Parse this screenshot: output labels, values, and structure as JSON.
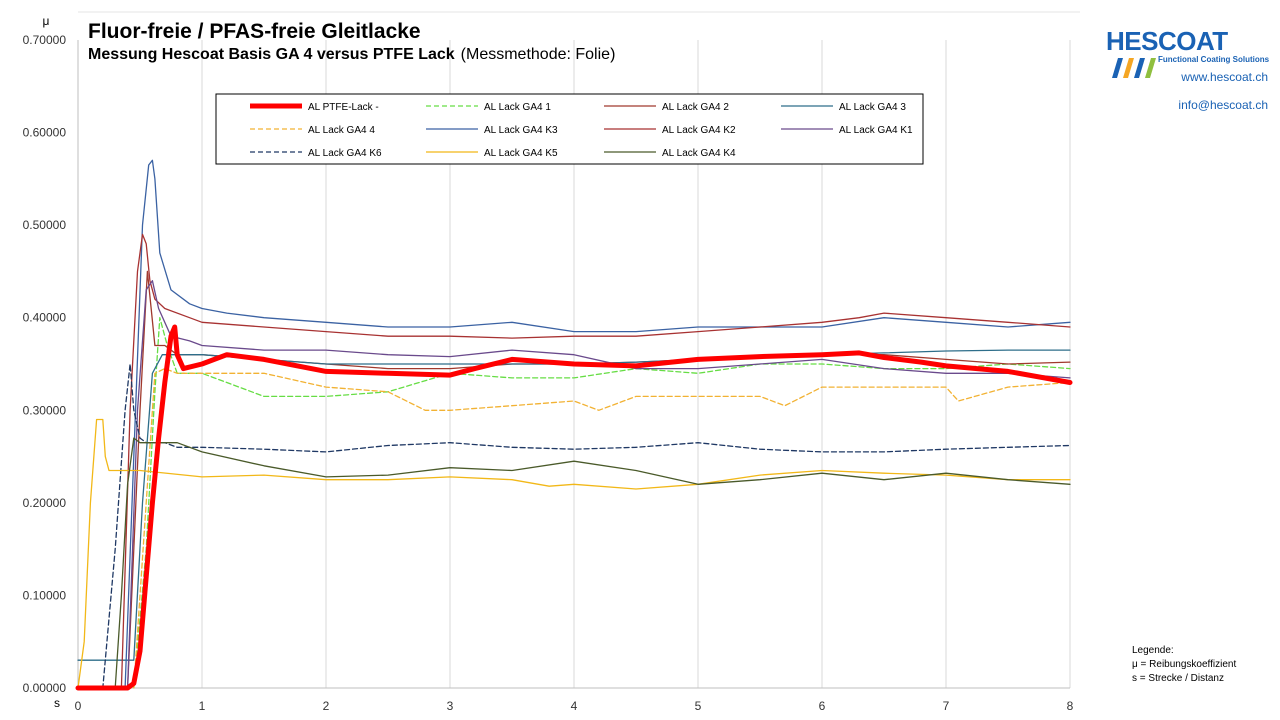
{
  "header": {
    "title": "Fluor-freie / PFAS-freie Gleitlacke",
    "subtitle": "Messung Hescoat Basis GA 4 versus PTFE Lack",
    "method_note": "(Messmethode: Folie)"
  },
  "brand": {
    "logo_text": "HESCOAT",
    "tagline": "Functional Coating Solutions",
    "website": "www.hescoat.ch",
    "email": "info@hescoat.ch",
    "color": "#1a62b4",
    "stripe_colors": [
      "#1a62b4",
      "#f5a623",
      "#1a62b4",
      "#8fbf3f"
    ]
  },
  "legend_note": {
    "heading": "Legende:",
    "line1": "μ = Reibungskoeffizient",
    "line2": "s = Strecke / Distanz"
  },
  "chart_data": {
    "type": "line",
    "title": "Fluor-freie / PFAS-freie Gleitlacke",
    "xlabel": "s",
    "ylabel": "μ",
    "xlim": [
      0,
      8
    ],
    "ylim": [
      0,
      0.7
    ],
    "x_ticks": [
      0,
      1,
      2,
      3,
      4,
      5,
      6,
      7,
      8
    ],
    "y_ticks": [
      "0.00000",
      "0.10000",
      "0.20000",
      "0.30000",
      "0.40000",
      "0.50000",
      "0.60000",
      "0.70000"
    ],
    "y_tick_values": [
      0,
      0.1,
      0.2,
      0.3,
      0.4,
      0.5,
      0.6,
      0.7
    ],
    "grid": "vertical",
    "legend_position": "top",
    "series": [
      {
        "name": "AL PTFE-Lack -",
        "color": "#ff0000",
        "dash": "solid",
        "width": 5,
        "x": [
          0,
          0.4,
          0.45,
          0.5,
          0.55,
          0.6,
          0.65,
          0.7,
          0.75,
          0.78,
          0.8,
          0.85,
          1.0,
          1.2,
          1.5,
          2.0,
          2.5,
          3.0,
          3.2,
          3.5,
          4.0,
          4.5,
          5.0,
          5.5,
          6.0,
          6.3,
          6.5,
          6.8,
          7.0,
          7.5,
          8.0
        ],
        "y": [
          0,
          0,
          0.005,
          0.04,
          0.12,
          0.2,
          0.27,
          0.33,
          0.38,
          0.39,
          0.36,
          0.345,
          0.35,
          0.36,
          0.355,
          0.342,
          0.34,
          0.338,
          0.345,
          0.355,
          0.35,
          0.348,
          0.355,
          0.358,
          0.36,
          0.362,
          0.357,
          0.352,
          0.348,
          0.342,
          0.33
        ]
      },
      {
        "name": "AL Lack GA4 1",
        "color": "#66dd44",
        "dash": "dashed",
        "width": 1.3,
        "x": [
          0,
          0.45,
          0.55,
          0.62,
          0.66,
          0.72,
          0.8,
          1.0,
          1.2,
          1.5,
          2.0,
          2.5,
          3.0,
          3.5,
          4.0,
          4.5,
          5.0,
          5.5,
          6.0,
          6.5,
          7.0,
          7.5,
          8.0
        ],
        "y": [
          0,
          0,
          0.15,
          0.32,
          0.4,
          0.37,
          0.34,
          0.34,
          0.33,
          0.315,
          0.315,
          0.32,
          0.34,
          0.335,
          0.335,
          0.345,
          0.34,
          0.35,
          0.35,
          0.345,
          0.345,
          0.35,
          0.345
        ]
      },
      {
        "name": "AL Lack GA4 2",
        "color": "#a0392d",
        "dash": "solid",
        "width": 1.3,
        "x": [
          0,
          0.4,
          0.5,
          0.56,
          0.62,
          0.7,
          0.8,
          1.0,
          1.5,
          2.0,
          2.5,
          3.0,
          3.5,
          4.0,
          4.5,
          5.0,
          5.5,
          6.0,
          6.5,
          7.0,
          7.5,
          8.0
        ],
        "y": [
          0,
          0,
          0.3,
          0.45,
          0.37,
          0.37,
          0.36,
          0.36,
          0.355,
          0.35,
          0.345,
          0.345,
          0.35,
          0.35,
          0.352,
          0.355,
          0.358,
          0.36,
          0.36,
          0.355,
          0.35,
          0.352
        ]
      },
      {
        "name": "AL Lack GA4 3",
        "color": "#2e6e8a",
        "dash": "solid",
        "width": 1.3,
        "x": [
          0,
          0.45,
          0.52,
          0.6,
          0.68,
          0.8,
          1.0,
          1.5,
          2.0,
          2.5,
          3.0,
          3.5,
          4.0,
          4.5,
          5.0,
          5.5,
          6.0,
          6.5,
          7.0,
          7.5,
          8.0
        ],
        "y": [
          0.03,
          0.03,
          0.2,
          0.34,
          0.36,
          0.36,
          0.36,
          0.355,
          0.35,
          0.35,
          0.35,
          0.35,
          0.35,
          0.352,
          0.355,
          0.358,
          0.36,
          0.362,
          0.364,
          0.365,
          0.365
        ]
      },
      {
        "name": "AL Lack GA4 4",
        "color": "#f2b233",
        "dash": "dashed",
        "width": 1.3,
        "x": [
          0,
          0.45,
          0.55,
          0.62,
          0.7,
          0.8,
          1.0,
          1.5,
          2.0,
          2.5,
          2.8,
          3.0,
          3.5,
          4.0,
          4.2,
          4.5,
          5.0,
          5.5,
          5.7,
          6.0,
          6.5,
          7.0,
          7.1,
          7.5,
          8.0
        ],
        "y": [
          0,
          0,
          0.2,
          0.34,
          0.345,
          0.34,
          0.34,
          0.34,
          0.325,
          0.32,
          0.3,
          0.3,
          0.305,
          0.31,
          0.3,
          0.315,
          0.315,
          0.315,
          0.305,
          0.325,
          0.325,
          0.325,
          0.31,
          0.325,
          0.33
        ]
      },
      {
        "name": "AL Lack GA4 K3",
        "color": "#3b62a3",
        "dash": "solid",
        "width": 1.3,
        "x": [
          0,
          0.38,
          0.45,
          0.52,
          0.57,
          0.6,
          0.62,
          0.66,
          0.75,
          0.9,
          1.0,
          1.2,
          1.5,
          2.0,
          2.5,
          3.0,
          3.5,
          4.0,
          4.5,
          5.0,
          5.5,
          6.0,
          6.5,
          7.0,
          7.5,
          8.0
        ],
        "y": [
          0,
          0,
          0.25,
          0.5,
          0.565,
          0.57,
          0.55,
          0.47,
          0.43,
          0.415,
          0.41,
          0.405,
          0.4,
          0.395,
          0.39,
          0.39,
          0.395,
          0.385,
          0.385,
          0.39,
          0.39,
          0.39,
          0.4,
          0.395,
          0.39,
          0.395
        ]
      },
      {
        "name": "AL Lack GA4 K2",
        "color": "#a83232",
        "dash": "solid",
        "width": 1.3,
        "x": [
          0,
          0.35,
          0.42,
          0.48,
          0.52,
          0.55,
          0.58,
          0.62,
          0.7,
          0.9,
          1.0,
          1.5,
          2.0,
          2.5,
          3.0,
          3.5,
          4.0,
          4.5,
          5.0,
          5.5,
          6.0,
          6.3,
          6.5,
          7.0,
          7.5,
          8.0
        ],
        "y": [
          0,
          0,
          0.3,
          0.45,
          0.49,
          0.48,
          0.44,
          0.42,
          0.41,
          0.4,
          0.395,
          0.39,
          0.385,
          0.38,
          0.38,
          0.378,
          0.38,
          0.38,
          0.385,
          0.39,
          0.395,
          0.4,
          0.405,
          0.4,
          0.395,
          0.39
        ]
      },
      {
        "name": "AL Lack GA4 K1",
        "color": "#6a4a8c",
        "dash": "solid",
        "width": 1.3,
        "x": [
          0,
          0.4,
          0.48,
          0.55,
          0.6,
          0.65,
          0.75,
          0.9,
          1.0,
          1.5,
          2.0,
          2.5,
          3.0,
          3.5,
          4.0,
          4.5,
          5.0,
          5.5,
          6.0,
          6.5,
          7.0,
          7.5,
          8.0
        ],
        "y": [
          0,
          0,
          0.3,
          0.43,
          0.44,
          0.41,
          0.38,
          0.375,
          0.37,
          0.365,
          0.365,
          0.36,
          0.358,
          0.365,
          0.36,
          0.345,
          0.345,
          0.35,
          0.355,
          0.345,
          0.34,
          0.34,
          0.335
        ]
      },
      {
        "name": "AL Lack GA4 K6",
        "color": "#1f3864",
        "dash": "dashed",
        "width": 1.3,
        "x": [
          0,
          0.2,
          0.3,
          0.38,
          0.42,
          0.45,
          0.5,
          0.55,
          0.6,
          0.7,
          0.8,
          1.0,
          1.5,
          2.0,
          2.5,
          3.0,
          3.5,
          4.0,
          4.5,
          5.0,
          5.5,
          6.0,
          6.5,
          7.0,
          7.5,
          8.0
        ],
        "y": [
          0,
          0,
          0.15,
          0.3,
          0.35,
          0.3,
          0.27,
          0.265,
          0.265,
          0.265,
          0.26,
          0.26,
          0.258,
          0.255,
          0.262,
          0.265,
          0.26,
          0.258,
          0.26,
          0.265,
          0.258,
          0.255,
          0.255,
          0.258,
          0.26,
          0.262
        ]
      },
      {
        "name": "AL Lack GA4 K5",
        "color": "#f2b818",
        "dash": "solid",
        "width": 1.3,
        "x": [
          0,
          0.05,
          0.1,
          0.15,
          0.2,
          0.22,
          0.25,
          0.3,
          0.5,
          1.0,
          1.5,
          2.0,
          2.5,
          3.0,
          3.5,
          3.8,
          4.0,
          4.5,
          5.0,
          5.5,
          6.0,
          6.5,
          7.0,
          7.5,
          8.0
        ],
        "y": [
          0,
          0.05,
          0.2,
          0.29,
          0.29,
          0.25,
          0.235,
          0.235,
          0.235,
          0.228,
          0.23,
          0.225,
          0.225,
          0.228,
          0.225,
          0.218,
          0.22,
          0.215,
          0.22,
          0.23,
          0.235,
          0.232,
          0.23,
          0.225,
          0.225
        ]
      },
      {
        "name": "AL Lack GA4 K4",
        "color": "#4a5a2a",
        "dash": "solid",
        "width": 1.3,
        "x": [
          0,
          0.3,
          0.35,
          0.4,
          0.45,
          0.5,
          0.6,
          0.8,
          1.0,
          1.5,
          2.0,
          2.5,
          3.0,
          3.5,
          4.0,
          4.5,
          5.0,
          5.5,
          6.0,
          6.5,
          7.0,
          7.5,
          8.0
        ],
        "y": [
          0,
          0,
          0.1,
          0.22,
          0.27,
          0.265,
          0.265,
          0.265,
          0.255,
          0.24,
          0.228,
          0.23,
          0.238,
          0.235,
          0.245,
          0.235,
          0.22,
          0.225,
          0.232,
          0.225,
          0.232,
          0.225,
          0.22
        ]
      }
    ]
  }
}
